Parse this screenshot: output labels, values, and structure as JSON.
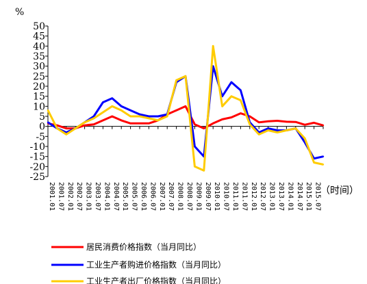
{
  "chart_data": {
    "type": "line",
    "ylabel": "%",
    "xlabel": "（时间）",
    "ylim": [
      -25,
      50
    ],
    "yticks": [
      50,
      45,
      40,
      35,
      30,
      25,
      20,
      15,
      10,
      5,
      0,
      -5,
      -10,
      -15,
      -20,
      -25
    ],
    "xticks": [
      "2001.01",
      "2001.07",
      "2002.01",
      "2002.07",
      "2003.01",
      "2003.07",
      "2004.01",
      "2004.07",
      "2005.01",
      "2005.07",
      "2006.01",
      "2006.07",
      "2007.01",
      "2007.07",
      "2008.01",
      "2008.07",
      "2009.01",
      "2009.07",
      "2010.01",
      "2010.07",
      "2011.01",
      "2011.07",
      "2012.01",
      "2012.07",
      "2013.01",
      "2013.07",
      "2014.01",
      "2014.07",
      "2015.01",
      "2015.07"
    ],
    "grid": false,
    "legend_position": "bottom",
    "x": [
      "2001.01",
      "2001.07",
      "2002.01",
      "2002.07",
      "2003.01",
      "2003.07",
      "2004.01",
      "2004.07",
      "2005.01",
      "2005.07",
      "2006.01",
      "2006.07",
      "2007.01",
      "2007.07",
      "2008.01",
      "2008.07",
      "2009.01",
      "2009.07",
      "2010.01",
      "2010.07",
      "2011.01",
      "2011.07",
      "2012.01",
      "2012.07",
      "2013.01",
      "2013.07",
      "2014.01",
      "2014.07",
      "2015.01",
      "2015.07",
      "2016.01"
    ],
    "series": [
      {
        "name": "居民消费价格指数（当月同比）",
        "color": "#ff0000",
        "values": [
          1.5,
          0.5,
          -1,
          -1,
          0.5,
          1,
          3,
          5,
          3,
          1.5,
          1.5,
          1.5,
          3,
          6,
          8,
          10,
          1,
          -1,
          1.5,
          3.5,
          4.5,
          6.5,
          5,
          2,
          2.5,
          2.8,
          2.3,
          2.2,
          0.8,
          1.8,
          0.5
        ]
      },
      {
        "name": "工业生产者购进价格指数（当月同比）",
        "color": "#0000ff",
        "values": [
          2,
          -1,
          -3,
          -1,
          2,
          5,
          12,
          14,
          10,
          8,
          6,
          5,
          5,
          6,
          22,
          25,
          -10,
          -15,
          30,
          15,
          22,
          18,
          2,
          -3,
          -1,
          -2,
          -2,
          -1,
          -8,
          -16,
          -15
        ]
      },
      {
        "name": "工业生产者出厂价格指数（当月同比）",
        "color": "#ffcc00",
        "values": [
          8,
          -1,
          -4,
          -1,
          2,
          4,
          7,
          10,
          8,
          5,
          5,
          4,
          3,
          5,
          23,
          25,
          -20,
          -22,
          40,
          10,
          15,
          13,
          1,
          -4,
          -2,
          -3,
          -2,
          -1,
          -6,
          -18,
          -19
        ]
      }
    ]
  }
}
